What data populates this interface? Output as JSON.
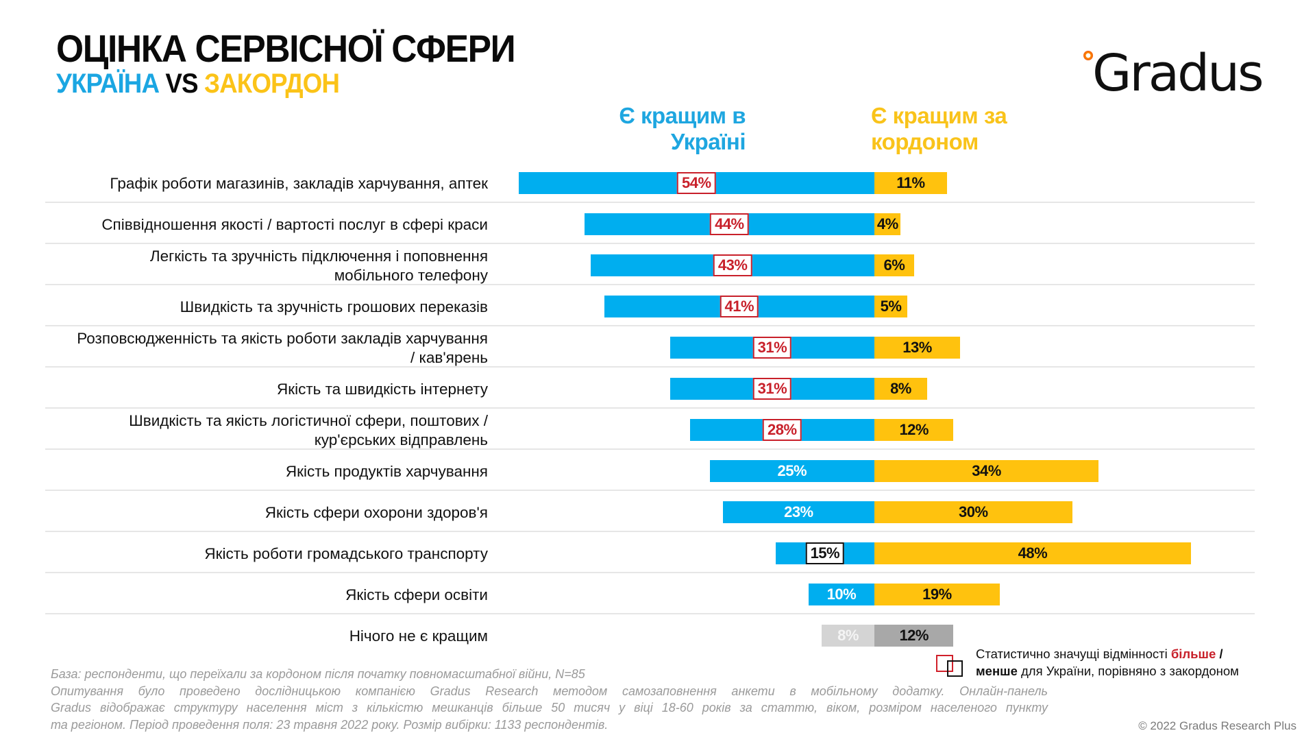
{
  "header": {
    "title": "ОЦІНКА СЕРВІСНОЇ СФЕРИ",
    "subtitle_ua": "УКРАЇНА",
    "subtitle_vs": "VS",
    "subtitle_abroad": "ЗАКОРДОН"
  },
  "logo": {
    "text": "Gradus",
    "icon": "gradus-dot-icon"
  },
  "colors": {
    "ukraine": "#00aeef",
    "abroad": "#ffc20e",
    "none_ukraine": "#d4d4d4",
    "none_abroad": "#a8a8a8",
    "significant_more": "#c8202a",
    "significant_less": "#111111"
  },
  "chart_data": {
    "type": "bar",
    "orientation": "horizontal-diverging",
    "title": "ОЦІНКА СЕРВІСНОЇ СФЕРИ — УКРАЇНА VS ЗАКОРДОН",
    "xlabel": "",
    "ylabel": "",
    "unit": "%",
    "grid": false,
    "legend_position": "bottom-right",
    "categories": [
      "Графік роботи магазинів, закладів харчування, аптек",
      "Співвідношення якості / вартості послуг в сфері краси",
      "Легкість та зручність підключення і поповнення мобільного телефону",
      "Швидкість та зручність грошових переказів",
      "Розповсюдженність та якість роботи закладів харчування / кав'ярень",
      "Якість та швидкість інтернету",
      "Швидкість та якість логістичної сфери, поштових / кур'єрських відправлень",
      "Якість продуктів харчування",
      "Якість сфери охорони здоров'я",
      "Якість роботи громадського транспорту",
      "Якість сфери освіти",
      "Нічого не є кращим"
    ],
    "category_lines": [
      [
        "Графік роботи магазинів, закладів харчування, аптек"
      ],
      [
        "Співвідношення якості / вартості послуг в сфері краси"
      ],
      [
        "Легкість та зручність підключення і поповнення",
        "мобільного телефону"
      ],
      [
        "Швидкість та зручність грошових переказів"
      ],
      [
        "Розповсюдженність та якість роботи закладів харчування",
        "/ кав'ярень"
      ],
      [
        "Якість та швидкість інтернету"
      ],
      [
        "Швидкість та якість логістичної сфери, поштових /",
        "кур'єрських відправлень"
      ],
      [
        "Якість продуктів харчування"
      ],
      [
        "Якість сфери охорони здоров'я"
      ],
      [
        "Якість роботи громадського транспорту"
      ],
      [
        "Якість сфери освіти"
      ],
      [
        "Нічого не є кращим"
      ]
    ],
    "series": [
      {
        "name": "Є кращим в Україні",
        "direction": "left",
        "values": [
          54,
          44,
          43,
          41,
          31,
          31,
          28,
          25,
          23,
          15,
          10,
          8
        ],
        "labels": [
          "54%",
          "44%",
          "43%",
          "41%",
          "31%",
          "31%",
          "28%",
          "25%",
          "23%",
          "15%",
          "10%",
          "8%"
        ],
        "significance": [
          "more",
          "more",
          "more",
          "more",
          "more",
          "more",
          "more",
          "none",
          "none",
          "less",
          "none",
          "none"
        ]
      },
      {
        "name": "Є кращим за кордоном",
        "direction": "right",
        "values": [
          11,
          4,
          6,
          5,
          13,
          8,
          12,
          34,
          30,
          48,
          19,
          12
        ],
        "labels": [
          "11%",
          "4%",
          "6%",
          "5%",
          "13%",
          "8%",
          "12%",
          "34%",
          "30%",
          "48%",
          "19%",
          "12%"
        ]
      }
    ],
    "neutral_rows": [
      11
    ],
    "xlim": [
      -60,
      60
    ]
  },
  "column_headers": {
    "ukraine_line1": "Є кращим в",
    "ukraine_line2": "Україні",
    "abroad_line1": "Є кращим за",
    "abroad_line2": "кордоном"
  },
  "legend": {
    "text_1": "Статистично значущі відмінності ",
    "more": "більше",
    "slash": " /",
    "less": "менше",
    "text_2": " для України, порівняно з закордоном"
  },
  "footnote": {
    "line1": "База: респонденти, що переїхали за кордоном після початку повномасштабної війни, N=85",
    "line2": "Опитування було проведено дослідницькою компанією Gradus Research методом самозаповнення анкети в мобільному додатку. Онлайн-панель",
    "line3": "Gradus відображає структуру населення міст з кількістю мешканців більше 50 тисяч у віці 18-60 років за статтю, віком, розміром населеного пункту",
    "line4": "та регіоном. Період проведення поля: 23 травня 2022 року. Розмір вибірки: 1133 респондентів."
  },
  "copyright": "© 2022 Gradus Research Plus"
}
